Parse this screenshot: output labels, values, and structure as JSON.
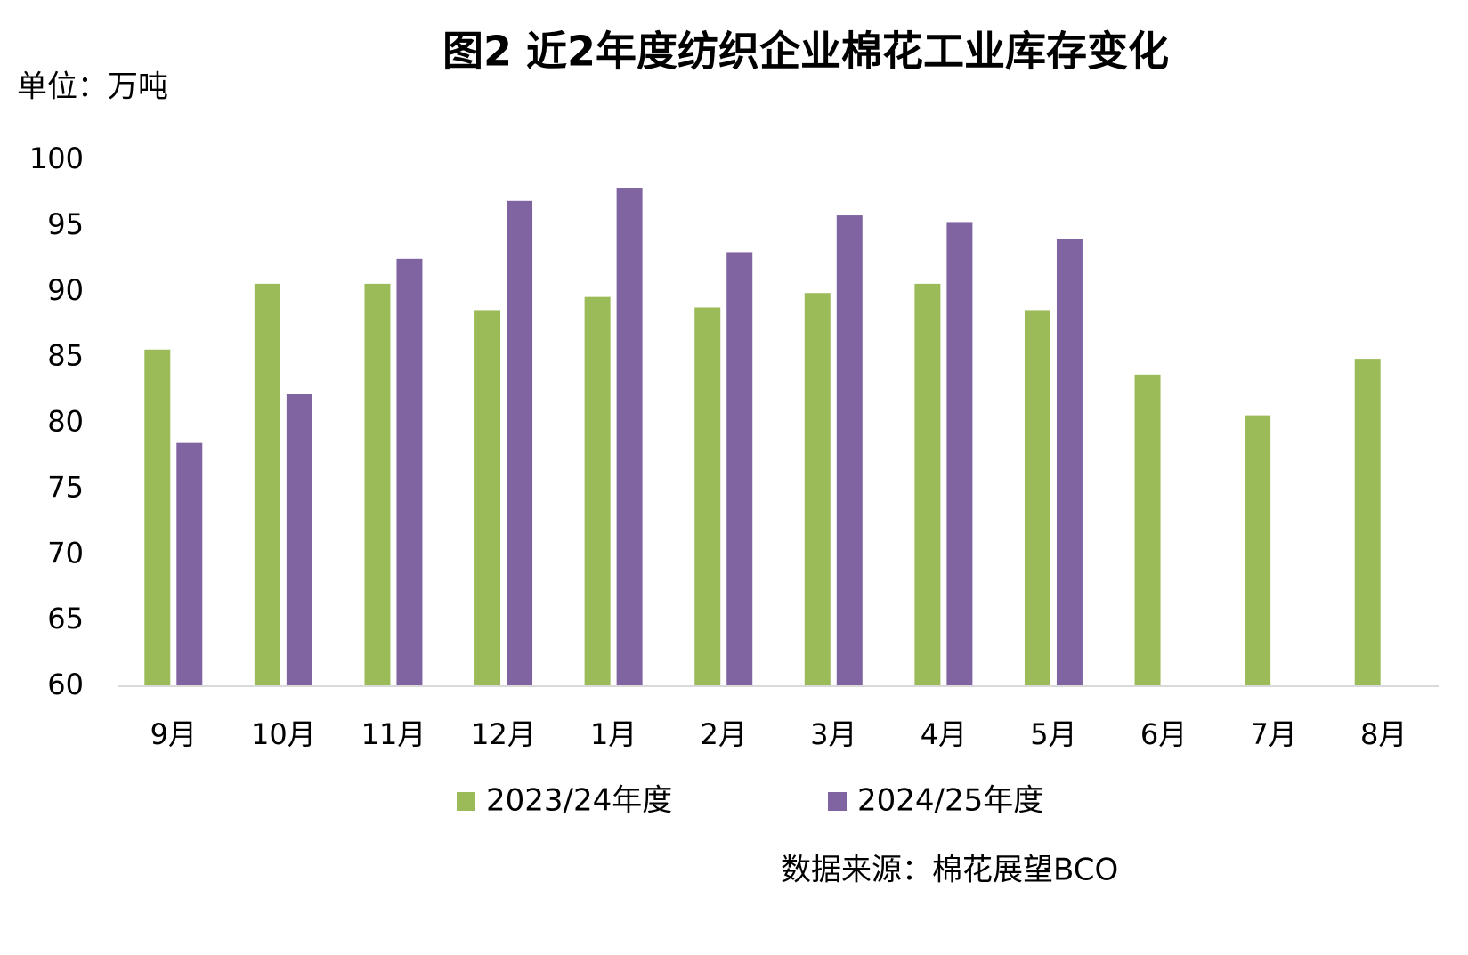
{
  "chart_data": {
    "type": "bar",
    "title": "图2  近2年度纺织企业棉花工业库存变化",
    "y_label": "单位：万吨",
    "source": "数据来源：棉花展望BCO",
    "categories": [
      "9月",
      "10月",
      "11月",
      "12月",
      "1月",
      "2月",
      "3月",
      "4月",
      "5月",
      "6月",
      "7月",
      "8月"
    ],
    "series": [
      {
        "name": "2023/24年度",
        "color": "#9bbb59",
        "values": [
          85.6,
          90.6,
          90.6,
          88.6,
          89.6,
          88.8,
          89.9,
          90.6,
          88.6,
          83.7,
          80.6,
          84.9
        ]
      },
      {
        "name": "2024/25年度",
        "color": "#8064a2",
        "values": [
          78.5,
          82.2,
          92.5,
          96.9,
          97.9,
          93.0,
          95.8,
          95.3,
          94.0,
          null,
          null,
          null
        ]
      }
    ],
    "ylim": [
      60,
      100
    ],
    "yticks": [
      60,
      65,
      70,
      75,
      80,
      85,
      90,
      95,
      100
    ],
    "grid": false
  }
}
